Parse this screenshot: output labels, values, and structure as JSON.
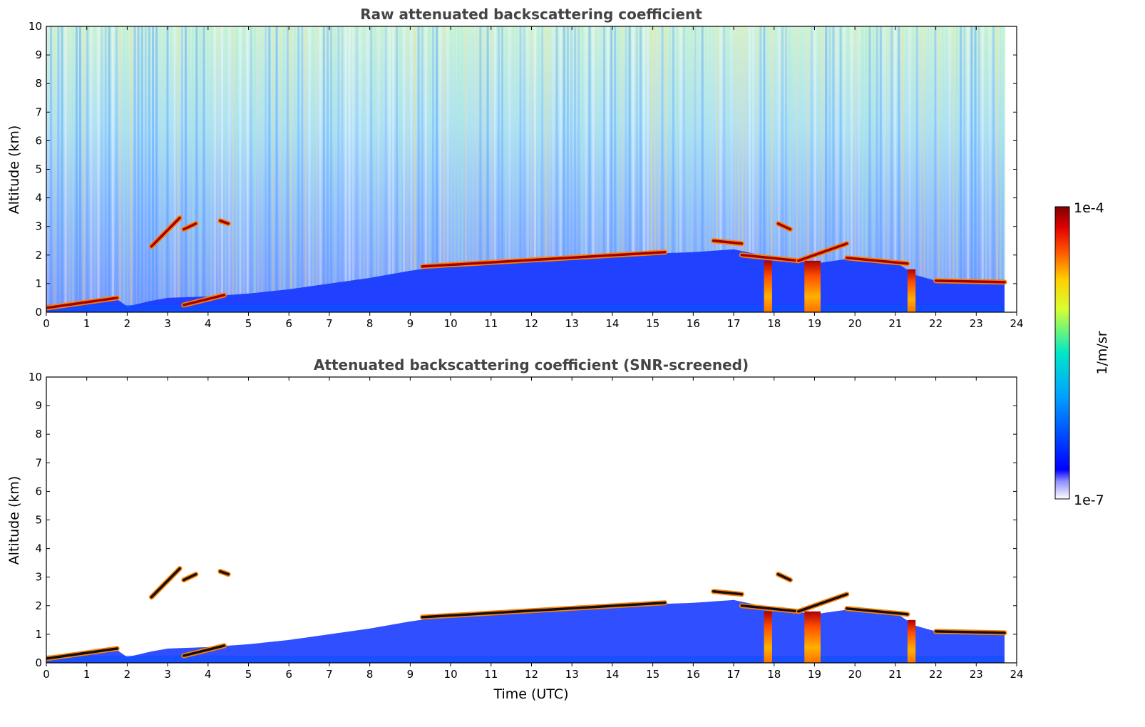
{
  "chart_data": [
    {
      "type": "heatmap",
      "title": "Raw attenuated backscattering coefficient",
      "xlabel": "",
      "ylabel": "Altitude (km)",
      "xlim": [
        0,
        24
      ],
      "ylim": [
        0,
        10
      ],
      "x_ticks": [
        "0",
        "1",
        "2",
        "3",
        "4",
        "5",
        "6",
        "7",
        "8",
        "9",
        "10",
        "11",
        "12",
        "13",
        "14",
        "15",
        "16",
        "17",
        "18",
        "19",
        "20",
        "21",
        "22",
        "23",
        "24"
      ],
      "y_ticks": [
        "0",
        "1",
        "2",
        "3",
        "4",
        "5",
        "6",
        "7",
        "8",
        "9",
        "10"
      ],
      "data_extent_x": [
        0,
        23.7
      ],
      "boundary_layer_top_km": [
        [
          0,
          0.25
        ],
        [
          1,
          0.35
        ],
        [
          1.7,
          0.5
        ],
        [
          2,
          0.2
        ],
        [
          2.6,
          0.4
        ],
        [
          3,
          0.5
        ],
        [
          4,
          0.55
        ],
        [
          5,
          0.65
        ],
        [
          6,
          0.8
        ],
        [
          7,
          1.0
        ],
        [
          8,
          1.2
        ],
        [
          9,
          1.45
        ],
        [
          10,
          1.65
        ],
        [
          11,
          1.8
        ],
        [
          12,
          1.85
        ],
        [
          13,
          1.95
        ],
        [
          14,
          2.0
        ],
        [
          15,
          2.05
        ],
        [
          16,
          2.1
        ],
        [
          17,
          2.2
        ],
        [
          18,
          1.9
        ],
        [
          19,
          1.7
        ],
        [
          20,
          1.9
        ],
        [
          21,
          1.75
        ],
        [
          21.5,
          1.3
        ],
        [
          22,
          1.1
        ],
        [
          23.7,
          1.05
        ]
      ],
      "cloud_layers": [
        {
          "t_start": 0.0,
          "t_end": 1.75,
          "alt_start": 0.15,
          "alt_end": 0.5
        },
        {
          "t_start": 2.6,
          "t_end": 3.3,
          "alt_start": 2.3,
          "alt_end": 3.3
        },
        {
          "t_start": 3.4,
          "t_end": 3.7,
          "alt_start": 2.9,
          "alt_end": 3.1
        },
        {
          "t_start": 4.3,
          "t_end": 4.5,
          "alt_start": 3.2,
          "alt_end": 3.1
        },
        {
          "t_start": 3.4,
          "t_end": 4.4,
          "alt_start": 0.25,
          "alt_end": 0.6
        },
        {
          "t_start": 9.3,
          "t_end": 15.3,
          "alt_start": 1.6,
          "alt_end": 2.1
        },
        {
          "t_start": 16.5,
          "t_end": 17.2,
          "alt_start": 2.5,
          "alt_end": 2.4
        },
        {
          "t_start": 17.2,
          "t_end": 18.6,
          "alt_start": 2.0,
          "alt_end": 1.8
        },
        {
          "t_start": 18.1,
          "t_end": 18.4,
          "alt_start": 3.1,
          "alt_end": 2.9
        },
        {
          "t_start": 18.6,
          "t_end": 19.8,
          "alt_start": 1.8,
          "alt_end": 2.4
        },
        {
          "t_start": 19.8,
          "t_end": 21.3,
          "alt_start": 1.9,
          "alt_end": 1.7
        },
        {
          "t_start": 22.0,
          "t_end": 23.7,
          "alt_start": 1.1,
          "alt_end": 1.05
        }
      ],
      "precipitation_shafts": [
        {
          "t_start": 17.75,
          "t_end": 17.95,
          "alt_top": 1.8
        },
        {
          "t_start": 18.75,
          "t_end": 19.15,
          "alt_top": 1.8
        },
        {
          "t_start": 21.3,
          "t_end": 21.5,
          "alt_top": 1.5
        }
      ]
    },
    {
      "type": "heatmap",
      "title": "Attenuated backscattering coefficient (SNR-screened)",
      "xlabel": "Time (UTC)",
      "ylabel": "Altitude (km)",
      "xlim": [
        0,
        24
      ],
      "ylim": [
        0,
        10
      ],
      "x_ticks": [
        "0",
        "1",
        "2",
        "3",
        "4",
        "5",
        "6",
        "7",
        "8",
        "9",
        "10",
        "11",
        "12",
        "13",
        "14",
        "15",
        "16",
        "17",
        "18",
        "19",
        "20",
        "21",
        "22",
        "23",
        "24"
      ],
      "y_ticks": [
        "0",
        "1",
        "2",
        "3",
        "4",
        "5",
        "6",
        "7",
        "8",
        "9",
        "10"
      ],
      "data_extent_x": [
        0,
        23.7
      ]
    }
  ],
  "colorbar": {
    "label": "1/m/sr",
    "max_label": "1e-4",
    "min_label": "1e-7",
    "scale": "log",
    "colormap": "jet",
    "colors": [
      "#ffffff",
      "#0000ff",
      "#00b0ff",
      "#00ffb0",
      "#f0ff00",
      "#ff9000",
      "#ff0000",
      "#800000"
    ]
  }
}
